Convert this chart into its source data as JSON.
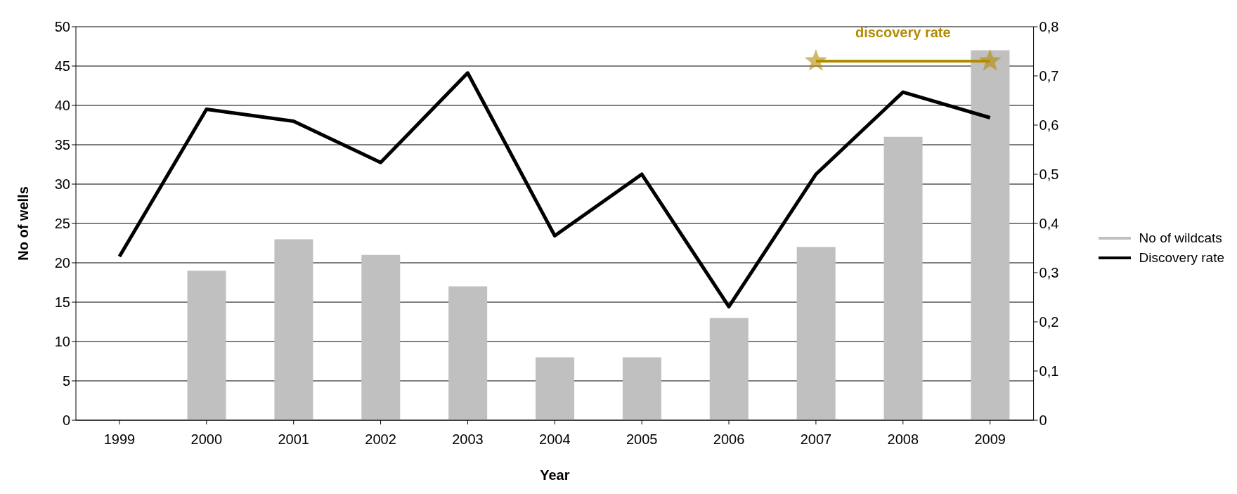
{
  "chart_data": {
    "type": "bar",
    "categories": [
      "1999",
      "2000",
      "2001",
      "2002",
      "2003",
      "2004",
      "2005",
      "2006",
      "2007",
      "2008",
      "2009"
    ],
    "xlabel": "Year",
    "ylabel": "No of wells",
    "series": [
      {
        "name": "No of wildcats",
        "color": "#c0c0c0",
        "values": [
          0,
          19,
          23,
          21,
          17,
          8,
          8,
          13,
          22,
          36,
          47
        ]
      },
      {
        "name": "Discovery rate",
        "type": "line",
        "axis": "y2",
        "color": "#000000",
        "values": [
          0.333,
          0.632,
          0.608,
          0.524,
          0.706,
          0.375,
          0.5,
          0.231,
          0.5,
          0.667,
          0.615
        ]
      },
      {
        "name": "discovery rate",
        "type": "line",
        "axis": "y2",
        "color": "#b38b00",
        "marker": "star",
        "values": [
          null,
          null,
          null,
          null,
          null,
          null,
          null,
          null,
          0.73,
          0.73,
          0.73
        ]
      }
    ],
    "ylim": [
      0,
      50
    ],
    "yticks": [
      0,
      5,
      10,
      15,
      20,
      25,
      30,
      35,
      40,
      45,
      50
    ],
    "y2lim": [
      0,
      0.8
    ],
    "y2ticks": [
      0,
      {
        "value": 0.1,
        "label": "0,1"
      },
      {
        "value": 0.2,
        "label": "0,2"
      },
      {
        "value": 0.3,
        "label": "0,3"
      },
      {
        "value": 0.4,
        "label": "0,4"
      },
      {
        "value": 0.5,
        "label": "0,5"
      },
      {
        "value": 0.6,
        "label": "0,6"
      },
      {
        "value": 0.7,
        "label": "0,7"
      },
      {
        "value": 0.8,
        "label": "0,8"
      }
    ],
    "grid": "y",
    "legend": "right",
    "marker": "none"
  }
}
